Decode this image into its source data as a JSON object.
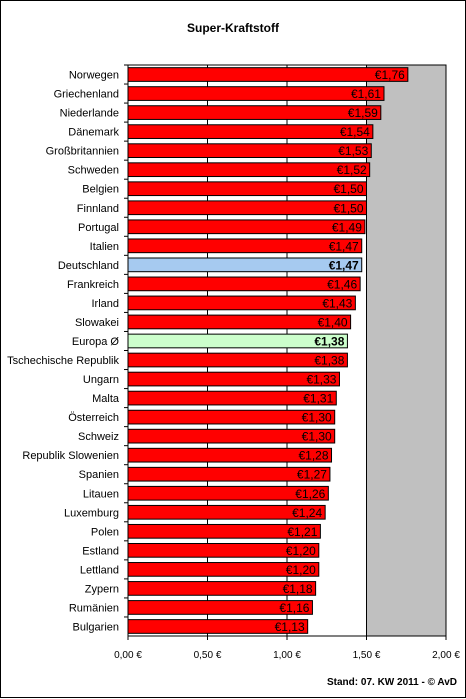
{
  "footer": "Stand: 07. KW 2011 - © AvD",
  "colors": {
    "bar": "#ff0000",
    "highlight_country": "#a6caf0",
    "highlight_average": "#ccffcc",
    "band": "#c0c0c0",
    "background": "#ffffff",
    "grid": "#000000"
  },
  "chart_data": {
    "type": "bar",
    "orientation": "horizontal",
    "title": "Super-Kraftstoff",
    "xlabel": "",
    "ylabel": "",
    "xlim": [
      0,
      2.0
    ],
    "xticks": [
      "0,00 €",
      "0,50 €",
      "1,00 €",
      "1,50 €",
      "2,00 €"
    ],
    "xtick_values": [
      0,
      0.5,
      1.0,
      1.5,
      2.0
    ],
    "shaded_range": [
      1.5,
      2.0
    ],
    "grid": "vertical",
    "categories": [
      "Norwegen",
      "Griechenland",
      "Niederlande",
      "Dänemark",
      "Großbritannien",
      "Schweden",
      "Belgien",
      "Finnland",
      "Portugal",
      "Italien",
      "Deutschland",
      "Frankreich",
      "Irland",
      "Slowakei",
      "Europa Ø",
      "Tschechische Republik",
      "Ungarn",
      "Malta",
      "Österreich",
      "Schweiz",
      "Republik Slowenien",
      "Spanien",
      "Litauen",
      "Luxemburg",
      "Polen",
      "Estland",
      "Lettland",
      "Zypern",
      "Rumänien",
      "Bulgarien"
    ],
    "values": [
      1.76,
      1.61,
      1.59,
      1.54,
      1.53,
      1.52,
      1.5,
      1.5,
      1.49,
      1.47,
      1.47,
      1.46,
      1.43,
      1.4,
      1.38,
      1.38,
      1.33,
      1.31,
      1.3,
      1.3,
      1.28,
      1.27,
      1.26,
      1.24,
      1.21,
      1.2,
      1.2,
      1.18,
      1.16,
      1.13
    ],
    "data_labels": [
      "€1,76",
      "€1,61",
      "€1,59",
      "€1,54",
      "€1,53",
      "€1,52",
      "€1,50",
      "€1,50",
      "€1,49",
      "€1,47",
      "€1,47",
      "€1,46",
      "€1,43",
      "€1,40",
      "€1,38",
      "€1,38",
      "€1,33",
      "€1,31",
      "€1,30",
      "€1,30",
      "€1,28",
      "€1,27",
      "€1,26",
      "€1,24",
      "€1,21",
      "€1,20",
      "€1,20",
      "€1,18",
      "€1,16",
      "€1,13"
    ],
    "highlight": {
      "Deutschland": "highlight_country",
      "Europa Ø": "highlight_average"
    },
    "bold_labels": [
      "Deutschland",
      "Europa Ø"
    ]
  }
}
